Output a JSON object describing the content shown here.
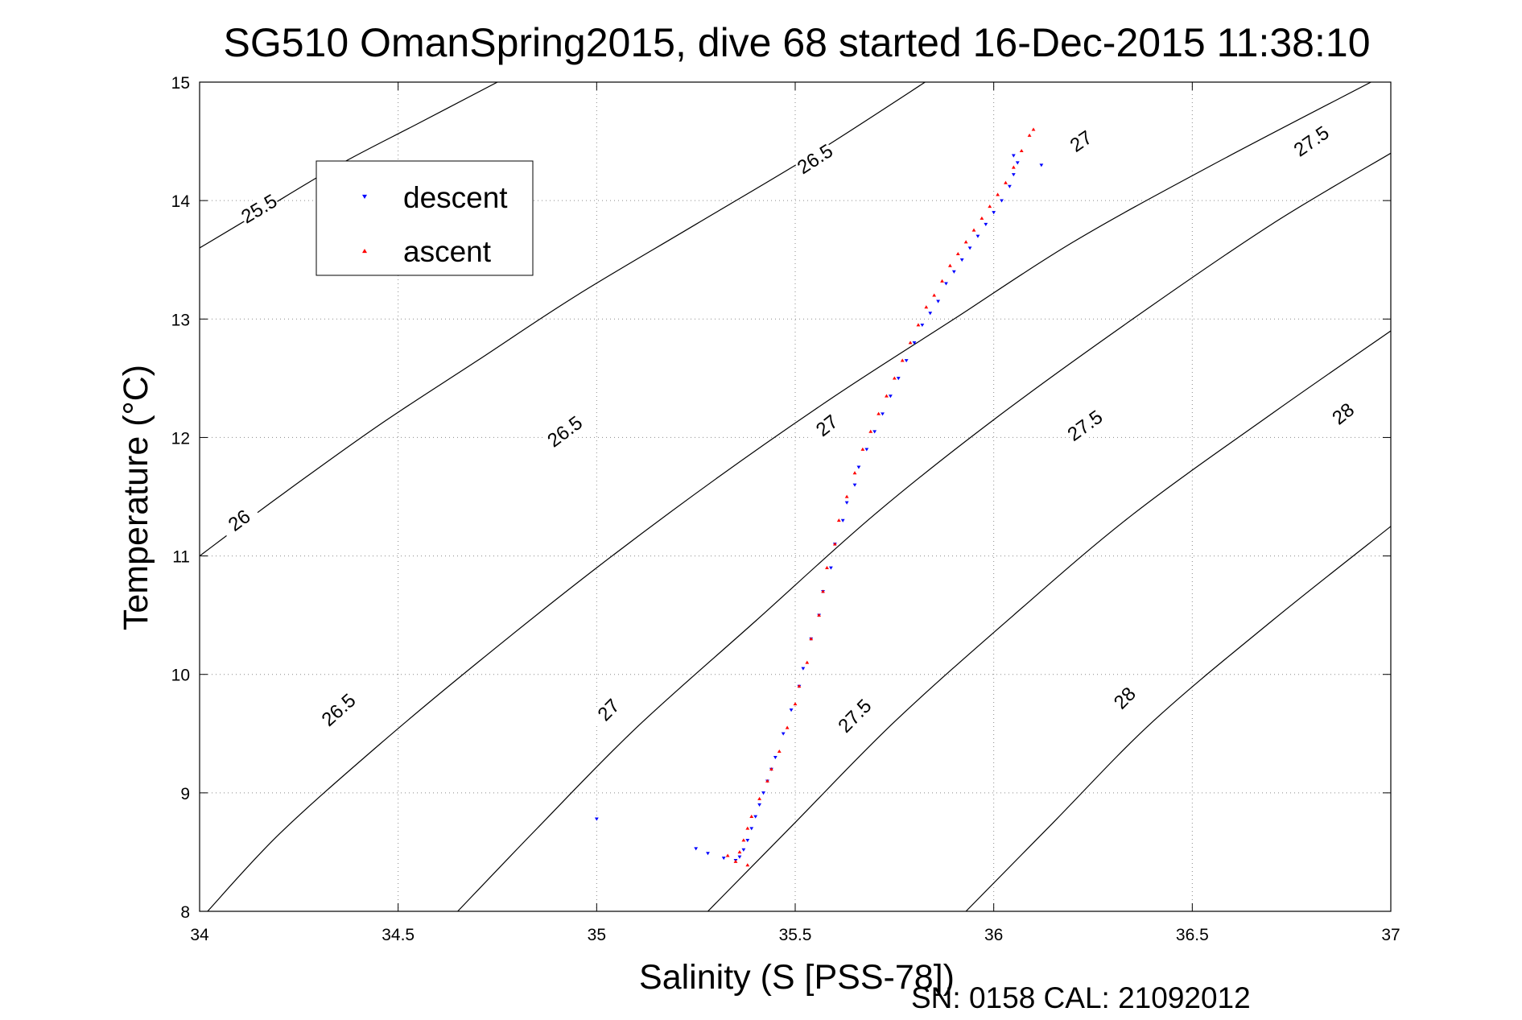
{
  "chart_data": {
    "type": "scatter",
    "title": "SG510 OmanSpring2015, dive 68 started 16-Dec-2015 11:38:10",
    "xlabel": "Salinity (S [PSS-78])",
    "ylabel": "Temperature (°C)",
    "footer": "SN: 0158  CAL: 21092012",
    "xlim": [
      34,
      37
    ],
    "ylim": [
      8,
      15
    ],
    "xticks": [
      34,
      34.5,
      35,
      35.5,
      36,
      36.5,
      37
    ],
    "xtick_labels": [
      "34",
      "34.5",
      "35",
      "35.5",
      "36",
      "36.5",
      "37"
    ],
    "yticks": [
      8,
      9,
      10,
      11,
      12,
      13,
      14,
      15
    ],
    "ytick_labels": [
      "8",
      "9",
      "10",
      "11",
      "12",
      "13",
      "14",
      "15"
    ],
    "grid": true,
    "legend_position": "upper-left",
    "colors": {
      "descent": "#0000ff",
      "ascent": "#ff0000",
      "isopycnal": "#000000"
    },
    "series": [
      {
        "name": "descent",
        "marker": "triangle-down",
        "points": [
          [
            35.25,
            8.53
          ],
          [
            35.28,
            8.49
          ],
          [
            35.32,
            8.45
          ],
          [
            35.35,
            8.43
          ],
          [
            35.36,
            8.46
          ],
          [
            35.37,
            8.52
          ],
          [
            35.38,
            8.6
          ],
          [
            35.39,
            8.7
          ],
          [
            35.4,
            8.8
          ],
          [
            35.41,
            8.9
          ],
          [
            35.42,
            9.0
          ],
          [
            35.43,
            9.1
          ],
          [
            35.44,
            9.2
          ],
          [
            35.45,
            9.3
          ],
          [
            35.47,
            9.5
          ],
          [
            35.49,
            9.7
          ],
          [
            35.51,
            9.9
          ],
          [
            35.52,
            10.05
          ],
          [
            35.54,
            10.3
          ],
          [
            35.56,
            10.5
          ],
          [
            35.57,
            10.7
          ],
          [
            35.59,
            10.9
          ],
          [
            35.6,
            11.1
          ],
          [
            35.62,
            11.3
          ],
          [
            35.63,
            11.45
          ],
          [
            35.65,
            11.6
          ],
          [
            35.66,
            11.75
          ],
          [
            35.68,
            11.9
          ],
          [
            35.7,
            12.05
          ],
          [
            35.72,
            12.2
          ],
          [
            35.74,
            12.35
          ],
          [
            35.76,
            12.5
          ],
          [
            35.78,
            12.65
          ],
          [
            35.8,
            12.8
          ],
          [
            35.82,
            12.95
          ],
          [
            35.84,
            13.05
          ],
          [
            35.86,
            13.15
          ],
          [
            35.88,
            13.3
          ],
          [
            35.9,
            13.4
          ],
          [
            35.92,
            13.5
          ],
          [
            35.94,
            13.6
          ],
          [
            35.96,
            13.7
          ],
          [
            35.98,
            13.8
          ],
          [
            36.0,
            13.9
          ],
          [
            36.02,
            14.0
          ],
          [
            36.04,
            14.12
          ],
          [
            36.05,
            14.22
          ],
          [
            36.06,
            14.32
          ],
          [
            36.05,
            14.38
          ],
          [
            36.12,
            14.3
          ],
          [
            35.0,
            8.78
          ]
        ]
      },
      {
        "name": "ascent",
        "marker": "triangle-up",
        "points": [
          [
            35.33,
            8.47
          ],
          [
            35.35,
            8.42
          ],
          [
            35.38,
            8.39
          ],
          [
            35.36,
            8.5
          ],
          [
            35.37,
            8.6
          ],
          [
            35.38,
            8.7
          ],
          [
            35.39,
            8.8
          ],
          [
            35.41,
            8.95
          ],
          [
            35.43,
            9.1
          ],
          [
            35.44,
            9.2
          ],
          [
            35.46,
            9.35
          ],
          [
            35.48,
            9.55
          ],
          [
            35.5,
            9.75
          ],
          [
            35.51,
            9.9
          ],
          [
            35.53,
            10.1
          ],
          [
            35.54,
            10.3
          ],
          [
            35.56,
            10.5
          ],
          [
            35.57,
            10.7
          ],
          [
            35.58,
            10.9
          ],
          [
            35.6,
            11.1
          ],
          [
            35.61,
            11.3
          ],
          [
            35.63,
            11.5
          ],
          [
            35.65,
            11.7
          ],
          [
            35.67,
            11.9
          ],
          [
            35.69,
            12.05
          ],
          [
            35.71,
            12.2
          ],
          [
            35.73,
            12.35
          ],
          [
            35.75,
            12.5
          ],
          [
            35.77,
            12.65
          ],
          [
            35.79,
            12.8
          ],
          [
            35.81,
            12.95
          ],
          [
            35.83,
            13.1
          ],
          [
            35.85,
            13.2
          ],
          [
            35.87,
            13.32
          ],
          [
            35.89,
            13.45
          ],
          [
            35.91,
            13.55
          ],
          [
            35.93,
            13.65
          ],
          [
            35.95,
            13.75
          ],
          [
            35.97,
            13.85
          ],
          [
            35.99,
            13.95
          ],
          [
            36.01,
            14.05
          ],
          [
            36.03,
            14.15
          ],
          [
            36.05,
            14.28
          ],
          [
            36.07,
            14.42
          ],
          [
            36.09,
            14.55
          ],
          [
            36.1,
            14.6
          ]
        ]
      }
    ],
    "isopycnals": [
      {
        "sigma": "25.5",
        "points": [
          [
            34.0,
            13.6
          ],
          [
            34.15,
            13.9
          ],
          [
            34.35,
            14.3
          ],
          [
            34.55,
            14.65
          ],
          [
            34.75,
            15.0
          ]
        ],
        "labels": [
          [
            34.15,
            13.93
          ]
        ]
      },
      {
        "sigma": "26",
        "points": [
          [
            34.0,
            11.0
          ],
          [
            34.2,
            11.5
          ],
          [
            34.45,
            12.1
          ],
          [
            34.7,
            12.65
          ],
          [
            34.95,
            13.2
          ],
          [
            35.25,
            13.8
          ],
          [
            35.55,
            14.4
          ],
          [
            35.85,
            15.05
          ]
        ],
        "labels": [
          [
            34.1,
            11.3
          ]
        ]
      },
      {
        "sigma": "26.5",
        "points": [
          [
            34.02,
            8.0
          ],
          [
            34.2,
            8.65
          ],
          [
            34.45,
            9.4
          ],
          [
            34.7,
            10.1
          ],
          [
            35.0,
            10.9
          ],
          [
            35.3,
            11.65
          ],
          [
            35.6,
            12.35
          ],
          [
            35.9,
            13.0
          ],
          [
            36.2,
            13.65
          ],
          [
            36.55,
            14.3
          ],
          [
            36.95,
            15.0
          ]
        ],
        "labels": [
          [
            34.35,
            9.7
          ],
          [
            34.92,
            12.05
          ],
          [
            35.55,
            14.35
          ]
        ]
      },
      {
        "sigma": "27",
        "points": [
          [
            34.65,
            8.0
          ],
          [
            34.85,
            8.7
          ],
          [
            35.1,
            9.55
          ],
          [
            35.4,
            10.45
          ],
          [
            35.7,
            11.35
          ],
          [
            36.0,
            12.15
          ],
          [
            36.35,
            13.0
          ],
          [
            36.7,
            13.8
          ],
          [
            37.0,
            14.4
          ]
        ],
        "labels": [
          [
            35.03,
            9.7
          ],
          [
            35.58,
            12.1
          ],
          [
            36.22,
            14.5
          ]
        ]
      },
      {
        "sigma": "27.5",
        "points": [
          [
            35.28,
            8.0
          ],
          [
            35.5,
            8.75
          ],
          [
            35.75,
            9.6
          ],
          [
            36.05,
            10.5
          ],
          [
            36.35,
            11.35
          ],
          [
            36.7,
            12.2
          ],
          [
            37.0,
            12.9
          ]
        ],
        "labels": [
          [
            35.65,
            9.65
          ],
          [
            36.23,
            12.1
          ],
          [
            36.8,
            14.5
          ]
        ]
      },
      {
        "sigma": "28",
        "points": [
          [
            35.93,
            8.0
          ],
          [
            36.15,
            8.75
          ],
          [
            36.4,
            9.6
          ],
          [
            36.7,
            10.45
          ],
          [
            37.0,
            11.25
          ]
        ],
        "labels": [
          [
            36.33,
            9.8
          ],
          [
            36.88,
            12.2
          ]
        ]
      }
    ],
    "legend": {
      "entries": [
        "descent",
        "ascent"
      ]
    }
  }
}
